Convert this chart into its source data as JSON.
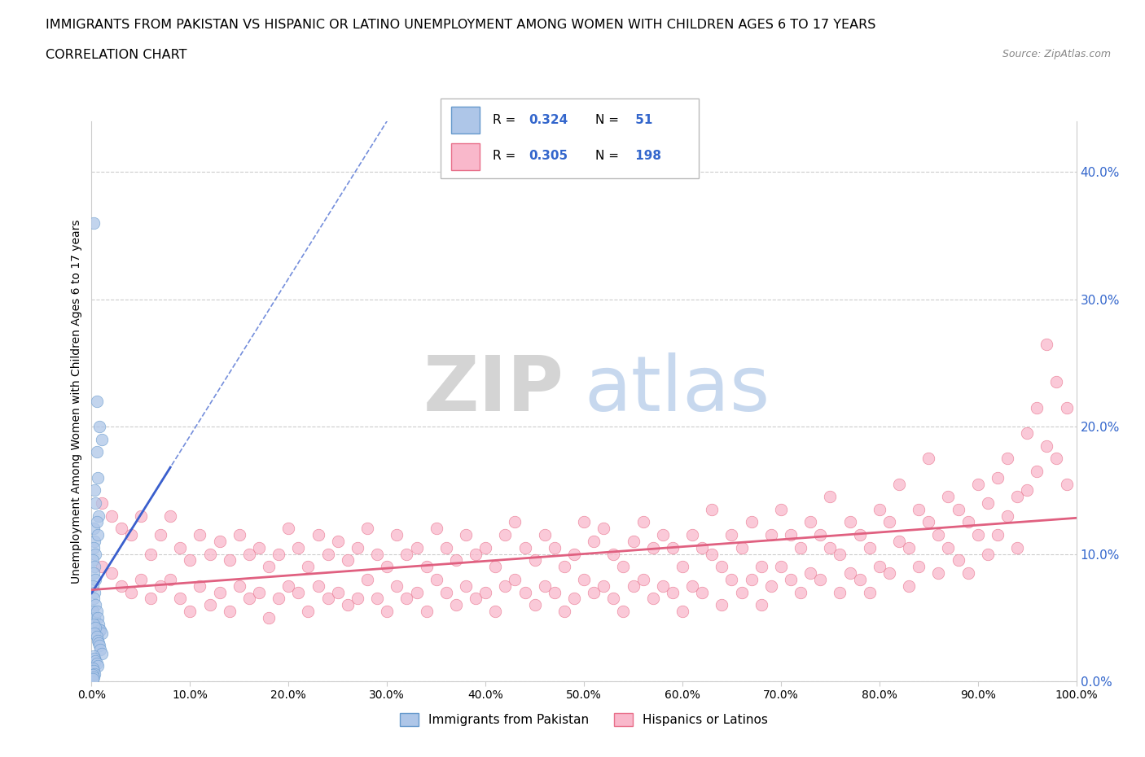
{
  "title_line1": "IMMIGRANTS FROM PAKISTAN VS HISPANIC OR LATINO UNEMPLOYMENT AMONG WOMEN WITH CHILDREN AGES 6 TO 17 YEARS",
  "title_line2": "CORRELATION CHART",
  "source": "Source: ZipAtlas.com",
  "ylabel": "Unemployment Among Women with Children Ages 6 to 17 years",
  "xlim": [
    0.0,
    1.0
  ],
  "ylim": [
    0.0,
    0.44
  ],
  "xticks": [
    0.0,
    0.1,
    0.2,
    0.3,
    0.4,
    0.5,
    0.6,
    0.7,
    0.8,
    0.9,
    1.0
  ],
  "xticklabels": [
    "0.0%",
    "10.0%",
    "20.0%",
    "30.0%",
    "40.0%",
    "50.0%",
    "60.0%",
    "70.0%",
    "80.0%",
    "90.0%",
    "100.0%"
  ],
  "yticks": [
    0.0,
    0.1,
    0.2,
    0.3,
    0.4
  ],
  "yticklabels_right": [
    "0.0%",
    "10.0%",
    "20.0%",
    "30.0%",
    "40.0%"
  ],
  "blue_R": 0.324,
  "blue_N": 51,
  "pink_R": 0.305,
  "pink_N": 198,
  "blue_color": "#aec6e8",
  "pink_color": "#f9b8cb",
  "blue_edge_color": "#6699cc",
  "pink_edge_color": "#e8708a",
  "blue_line_color": "#3a5fcd",
  "pink_line_color": "#e06080",
  "watermark_zip": "ZIP",
  "watermark_atlas": "atlas",
  "legend_label_blue": "Immigrants from Pakistan",
  "legend_label_pink": "Hispanics or Latinos",
  "blue_scatter": [
    [
      0.002,
      0.36
    ],
    [
      0.005,
      0.22
    ],
    [
      0.008,
      0.2
    ],
    [
      0.005,
      0.18
    ],
    [
      0.01,
      0.19
    ],
    [
      0.003,
      0.15
    ],
    [
      0.006,
      0.16
    ],
    [
      0.004,
      0.14
    ],
    [
      0.007,
      0.13
    ],
    [
      0.002,
      0.12
    ],
    [
      0.005,
      0.125
    ],
    [
      0.003,
      0.11
    ],
    [
      0.006,
      0.115
    ],
    [
      0.002,
      0.105
    ],
    [
      0.004,
      0.1
    ],
    [
      0.001,
      0.095
    ],
    [
      0.003,
      0.09
    ],
    [
      0.002,
      0.085
    ],
    [
      0.004,
      0.08
    ],
    [
      0.001,
      0.075
    ],
    [
      0.003,
      0.07
    ],
    [
      0.002,
      0.065
    ],
    [
      0.004,
      0.06
    ],
    [
      0.001,
      0.055
    ],
    [
      0.003,
      0.05
    ],
    [
      0.005,
      0.055
    ],
    [
      0.006,
      0.05
    ],
    [
      0.007,
      0.045
    ],
    [
      0.008,
      0.04
    ],
    [
      0.009,
      0.04
    ],
    [
      0.01,
      0.038
    ],
    [
      0.002,
      0.045
    ],
    [
      0.004,
      0.042
    ],
    [
      0.003,
      0.038
    ],
    [
      0.005,
      0.035
    ],
    [
      0.006,
      0.032
    ],
    [
      0.007,
      0.03
    ],
    [
      0.008,
      0.028
    ],
    [
      0.009,
      0.025
    ],
    [
      0.01,
      0.022
    ],
    [
      0.002,
      0.02
    ],
    [
      0.003,
      0.018
    ],
    [
      0.004,
      0.016
    ],
    [
      0.005,
      0.014
    ],
    [
      0.006,
      0.012
    ],
    [
      0.001,
      0.01
    ],
    [
      0.002,
      0.008
    ],
    [
      0.003,
      0.006
    ],
    [
      0.001,
      0.005
    ],
    [
      0.002,
      0.003
    ],
    [
      0.001,
      0.002
    ]
  ],
  "pink_scatter": [
    [
      0.01,
      0.14
    ],
    [
      0.01,
      0.09
    ],
    [
      0.02,
      0.13
    ],
    [
      0.02,
      0.085
    ],
    [
      0.03,
      0.12
    ],
    [
      0.03,
      0.075
    ],
    [
      0.04,
      0.115
    ],
    [
      0.04,
      0.07
    ],
    [
      0.05,
      0.13
    ],
    [
      0.05,
      0.08
    ],
    [
      0.06,
      0.1
    ],
    [
      0.06,
      0.065
    ],
    [
      0.07,
      0.115
    ],
    [
      0.07,
      0.075
    ],
    [
      0.08,
      0.13
    ],
    [
      0.08,
      0.08
    ],
    [
      0.09,
      0.105
    ],
    [
      0.09,
      0.065
    ],
    [
      0.1,
      0.095
    ],
    [
      0.1,
      0.055
    ],
    [
      0.11,
      0.115
    ],
    [
      0.11,
      0.075
    ],
    [
      0.12,
      0.1
    ],
    [
      0.12,
      0.06
    ],
    [
      0.13,
      0.11
    ],
    [
      0.13,
      0.07
    ],
    [
      0.14,
      0.095
    ],
    [
      0.14,
      0.055
    ],
    [
      0.15,
      0.115
    ],
    [
      0.15,
      0.075
    ],
    [
      0.16,
      0.1
    ],
    [
      0.16,
      0.065
    ],
    [
      0.17,
      0.105
    ],
    [
      0.17,
      0.07
    ],
    [
      0.18,
      0.09
    ],
    [
      0.18,
      0.05
    ],
    [
      0.19,
      0.1
    ],
    [
      0.19,
      0.065
    ],
    [
      0.2,
      0.12
    ],
    [
      0.2,
      0.075
    ],
    [
      0.21,
      0.105
    ],
    [
      0.21,
      0.07
    ],
    [
      0.22,
      0.09
    ],
    [
      0.22,
      0.055
    ],
    [
      0.23,
      0.115
    ],
    [
      0.23,
      0.075
    ],
    [
      0.24,
      0.1
    ],
    [
      0.24,
      0.065
    ],
    [
      0.25,
      0.11
    ],
    [
      0.25,
      0.07
    ],
    [
      0.26,
      0.095
    ],
    [
      0.26,
      0.06
    ],
    [
      0.27,
      0.105
    ],
    [
      0.27,
      0.065
    ],
    [
      0.28,
      0.12
    ],
    [
      0.28,
      0.08
    ],
    [
      0.29,
      0.1
    ],
    [
      0.29,
      0.065
    ],
    [
      0.3,
      0.09
    ],
    [
      0.3,
      0.055
    ],
    [
      0.31,
      0.115
    ],
    [
      0.31,
      0.075
    ],
    [
      0.32,
      0.1
    ],
    [
      0.32,
      0.065
    ],
    [
      0.33,
      0.105
    ],
    [
      0.33,
      0.07
    ],
    [
      0.34,
      0.09
    ],
    [
      0.34,
      0.055
    ],
    [
      0.35,
      0.12
    ],
    [
      0.35,
      0.08
    ],
    [
      0.36,
      0.105
    ],
    [
      0.36,
      0.07
    ],
    [
      0.37,
      0.095
    ],
    [
      0.37,
      0.06
    ],
    [
      0.38,
      0.115
    ],
    [
      0.38,
      0.075
    ],
    [
      0.39,
      0.1
    ],
    [
      0.39,
      0.065
    ],
    [
      0.4,
      0.105
    ],
    [
      0.4,
      0.07
    ],
    [
      0.41,
      0.09
    ],
    [
      0.41,
      0.055
    ],
    [
      0.42,
      0.115
    ],
    [
      0.42,
      0.075
    ],
    [
      0.43,
      0.125
    ],
    [
      0.43,
      0.08
    ],
    [
      0.44,
      0.105
    ],
    [
      0.44,
      0.07
    ],
    [
      0.45,
      0.095
    ],
    [
      0.45,
      0.06
    ],
    [
      0.46,
      0.115
    ],
    [
      0.46,
      0.075
    ],
    [
      0.47,
      0.105
    ],
    [
      0.47,
      0.07
    ],
    [
      0.48,
      0.09
    ],
    [
      0.48,
      0.055
    ],
    [
      0.49,
      0.1
    ],
    [
      0.49,
      0.065
    ],
    [
      0.5,
      0.125
    ],
    [
      0.5,
      0.08
    ],
    [
      0.51,
      0.11
    ],
    [
      0.51,
      0.07
    ],
    [
      0.52,
      0.12
    ],
    [
      0.52,
      0.075
    ],
    [
      0.53,
      0.1
    ],
    [
      0.53,
      0.065
    ],
    [
      0.54,
      0.09
    ],
    [
      0.54,
      0.055
    ],
    [
      0.55,
      0.11
    ],
    [
      0.55,
      0.075
    ],
    [
      0.56,
      0.125
    ],
    [
      0.56,
      0.08
    ],
    [
      0.57,
      0.105
    ],
    [
      0.57,
      0.065
    ],
    [
      0.58,
      0.115
    ],
    [
      0.58,
      0.075
    ],
    [
      0.59,
      0.105
    ],
    [
      0.59,
      0.07
    ],
    [
      0.6,
      0.09
    ],
    [
      0.6,
      0.055
    ],
    [
      0.61,
      0.115
    ],
    [
      0.61,
      0.075
    ],
    [
      0.62,
      0.105
    ],
    [
      0.62,
      0.07
    ],
    [
      0.63,
      0.1
    ],
    [
      0.63,
      0.135
    ],
    [
      0.64,
      0.09
    ],
    [
      0.64,
      0.06
    ],
    [
      0.65,
      0.115
    ],
    [
      0.65,
      0.08
    ],
    [
      0.66,
      0.105
    ],
    [
      0.66,
      0.07
    ],
    [
      0.67,
      0.125
    ],
    [
      0.67,
      0.08
    ],
    [
      0.68,
      0.09
    ],
    [
      0.68,
      0.06
    ],
    [
      0.69,
      0.115
    ],
    [
      0.69,
      0.075
    ],
    [
      0.7,
      0.135
    ],
    [
      0.7,
      0.09
    ],
    [
      0.71,
      0.115
    ],
    [
      0.71,
      0.08
    ],
    [
      0.72,
      0.105
    ],
    [
      0.72,
      0.07
    ],
    [
      0.73,
      0.125
    ],
    [
      0.73,
      0.085
    ],
    [
      0.74,
      0.115
    ],
    [
      0.74,
      0.08
    ],
    [
      0.75,
      0.105
    ],
    [
      0.75,
      0.145
    ],
    [
      0.76,
      0.1
    ],
    [
      0.76,
      0.07
    ],
    [
      0.77,
      0.125
    ],
    [
      0.77,
      0.085
    ],
    [
      0.78,
      0.115
    ],
    [
      0.78,
      0.08
    ],
    [
      0.79,
      0.105
    ],
    [
      0.79,
      0.07
    ],
    [
      0.8,
      0.135
    ],
    [
      0.8,
      0.09
    ],
    [
      0.81,
      0.125
    ],
    [
      0.81,
      0.085
    ],
    [
      0.82,
      0.155
    ],
    [
      0.82,
      0.11
    ],
    [
      0.83,
      0.105
    ],
    [
      0.83,
      0.075
    ],
    [
      0.84,
      0.135
    ],
    [
      0.84,
      0.09
    ],
    [
      0.85,
      0.175
    ],
    [
      0.85,
      0.125
    ],
    [
      0.86,
      0.115
    ],
    [
      0.86,
      0.085
    ],
    [
      0.87,
      0.145
    ],
    [
      0.87,
      0.105
    ],
    [
      0.88,
      0.135
    ],
    [
      0.88,
      0.095
    ],
    [
      0.89,
      0.125
    ],
    [
      0.89,
      0.085
    ],
    [
      0.9,
      0.155
    ],
    [
      0.9,
      0.115
    ],
    [
      0.91,
      0.14
    ],
    [
      0.91,
      0.1
    ],
    [
      0.92,
      0.16
    ],
    [
      0.92,
      0.115
    ],
    [
      0.93,
      0.175
    ],
    [
      0.93,
      0.13
    ],
    [
      0.94,
      0.145
    ],
    [
      0.94,
      0.105
    ],
    [
      0.95,
      0.195
    ],
    [
      0.95,
      0.15
    ],
    [
      0.96,
      0.215
    ],
    [
      0.96,
      0.165
    ],
    [
      0.97,
      0.185
    ],
    [
      0.97,
      0.265
    ],
    [
      0.98,
      0.235
    ],
    [
      0.98,
      0.175
    ],
    [
      0.99,
      0.215
    ],
    [
      0.99,
      0.155
    ]
  ]
}
